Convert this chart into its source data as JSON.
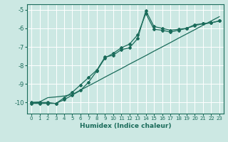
{
  "xlabel": "Humidex (Indice chaleur)",
  "bg_color": "#cce8e3",
  "grid_color": "#ffffff",
  "line_color": "#1a6b5a",
  "xlim": [
    -0.5,
    23.5
  ],
  "ylim": [
    -10.6,
    -4.7
  ],
  "yticks": [
    -10,
    -9,
    -8,
    -7,
    -6,
    -5
  ],
  "xticks": [
    0,
    1,
    2,
    3,
    4,
    5,
    6,
    7,
    8,
    9,
    10,
    11,
    12,
    13,
    14,
    15,
    16,
    17,
    18,
    19,
    20,
    21,
    22,
    23
  ],
  "series1_x": [
    0,
    1,
    2,
    3,
    4,
    5,
    6,
    7,
    8,
    9,
    10,
    11,
    12,
    13,
    14,
    15,
    16,
    17,
    18,
    19,
    20,
    21,
    22,
    23
  ],
  "series1_y": [
    -10.0,
    -10.0,
    -10.0,
    -10.05,
    -9.75,
    -9.45,
    -9.05,
    -8.65,
    -8.25,
    -7.55,
    -7.45,
    -7.15,
    -7.05,
    -6.55,
    -5.05,
    -5.9,
    -6.0,
    -6.1,
    -6.05,
    -6.0,
    -5.8,
    -5.75,
    -5.7,
    -5.6
  ],
  "series2_x": [
    0,
    1,
    2,
    3,
    4,
    5,
    6,
    7,
    8,
    9,
    10,
    11,
    12,
    13,
    14,
    15,
    16,
    17,
    18,
    19,
    20,
    21,
    22,
    23
  ],
  "series2_y": [
    -10.05,
    -10.05,
    -10.05,
    -10.05,
    -9.85,
    -9.6,
    -9.35,
    -8.9,
    -8.3,
    -7.6,
    -7.35,
    -7.05,
    -6.85,
    -6.35,
    -5.2,
    -6.05,
    -6.1,
    -6.2,
    -6.1,
    -6.0,
    -5.85,
    -5.75,
    -5.7,
    -5.6
  ],
  "series3_x": [
    0,
    1,
    2,
    3,
    4,
    5,
    6,
    7,
    8,
    9,
    10,
    11,
    12,
    13,
    14,
    15,
    16,
    17,
    18,
    19,
    20,
    21,
    22,
    23
  ],
  "series3_y": [
    -10.0,
    -9.97,
    -9.74,
    -9.7,
    -9.65,
    -9.57,
    -9.33,
    -9.1,
    -8.87,
    -8.63,
    -8.4,
    -8.17,
    -7.93,
    -7.7,
    -7.47,
    -7.23,
    -7.0,
    -6.77,
    -6.53,
    -6.3,
    -6.07,
    -5.83,
    -5.6,
    -5.37
  ]
}
